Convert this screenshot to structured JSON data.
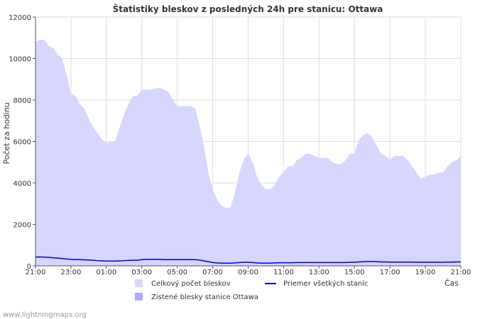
{
  "chart_data": {
    "type": "area",
    "title": "Štatistiky bleskov z posledných 24h pre stanicu: Ottawa",
    "xlabel": "Čas",
    "ylabel": "Počet za hodinu",
    "ylim": [
      0,
      12000
    ],
    "yticks": [
      0,
      2000,
      4000,
      6000,
      8000,
      10000,
      12000
    ],
    "xticks": [
      "21:00",
      "23:00",
      "01:00",
      "03:00",
      "05:00",
      "07:00",
      "09:00",
      "11:00",
      "13:00",
      "15:00",
      "17:00",
      "19:00",
      "21:00"
    ],
    "x_hours": [
      0,
      0.25,
      0.5,
      0.75,
      1,
      1.25,
      1.5,
      1.75,
      2,
      2.25,
      2.5,
      2.75,
      3,
      3.25,
      3.5,
      3.75,
      4,
      4.25,
      4.5,
      4.75,
      5,
      5.25,
      5.5,
      5.75,
      6,
      6.25,
      6.5,
      6.75,
      7,
      7.25,
      7.5,
      7.75,
      8,
      8.25,
      8.5,
      8.75,
      9,
      9.25,
      9.5,
      9.75,
      10,
      10.25,
      10.5,
      10.75,
      11,
      11.25,
      11.5,
      11.75,
      12,
      12.25,
      12.5,
      12.75,
      13,
      13.25,
      13.5,
      13.75,
      14,
      14.25,
      14.5,
      14.75,
      15,
      15.25,
      15.5,
      15.75,
      16,
      16.25,
      16.5,
      16.75,
      17,
      17.25,
      17.5,
      17.75,
      18,
      18.25,
      18.5,
      18.75,
      19,
      19.25,
      19.5,
      19.75,
      20,
      20.25,
      20.5,
      20.75,
      21,
      21.25,
      21.5,
      21.75,
      22,
      22.25,
      22.5,
      22.75,
      23,
      23.25,
      23.5,
      23.75,
      24
    ],
    "series": [
      {
        "name": "Celkový počet bleskov",
        "style": "area",
        "color": "#d6d6ff",
        "values": [
          10800,
          10900,
          10900,
          10600,
          10500,
          10200,
          10000,
          9200,
          8300,
          8200,
          7800,
          7600,
          7100,
          6700,
          6400,
          6100,
          5900,
          6000,
          6000,
          6700,
          7300,
          7800,
          8200,
          8200,
          8500,
          8500,
          8500,
          8550,
          8600,
          8500,
          8400,
          8000,
          7700,
          7700,
          7700,
          7700,
          7600,
          6800,
          5800,
          4500,
          3700,
          3200,
          2900,
          2800,
          2800,
          3500,
          4500,
          5100,
          5400,
          5000,
          4300,
          3900,
          3700,
          3700,
          3900,
          4300,
          4500,
          4800,
          4800,
          5100,
          5200,
          5400,
          5400,
          5300,
          5200,
          5200,
          5200,
          5000,
          4900,
          4900,
          5100,
          5400,
          5400,
          6100,
          6300,
          6400,
          6200,
          5800,
          5400,
          5300,
          5100,
          5300,
          5300,
          5300,
          5100,
          4800,
          4500,
          4200,
          4300,
          4400,
          4400,
          4500,
          4500,
          4800,
          5000,
          5100,
          5300
        ]
      },
      {
        "name": "Zistené blesky stanice Ottawa",
        "style": "area",
        "color": "#aaaaff",
        "values": []
      },
      {
        "name": "Priemer všetkých staníc",
        "style": "line",
        "color": "#0000cc",
        "values": [
          420,
          430,
          420,
          410,
          390,
          370,
          350,
          330,
          310,
          300,
          300,
          290,
          280,
          270,
          250,
          240,
          230,
          230,
          230,
          240,
          250,
          260,
          270,
          270,
          300,
          310,
          310,
          310,
          310,
          300,
          300,
          300,
          300,
          300,
          300,
          300,
          300,
          280,
          240,
          200,
          160,
          140,
          130,
          130,
          130,
          140,
          160,
          170,
          170,
          160,
          140,
          130,
          130,
          130,
          140,
          150,
          150,
          150,
          150,
          160,
          160,
          160,
          160,
          160,
          160,
          160,
          160,
          160,
          160,
          160,
          160,
          170,
          170,
          190,
          200,
          210,
          210,
          200,
          190,
          190,
          180,
          180,
          180,
          180,
          180,
          180,
          170,
          170,
          170,
          170,
          170,
          170,
          170,
          180,
          180,
          190,
          190
        ]
      }
    ],
    "legend": {
      "placement": "bottom",
      "items": [
        {
          "label": "Celkový počet bleskov",
          "kind": "box",
          "color": "#d6d6ff"
        },
        {
          "label": "Priemer všetkých staníc",
          "kind": "line",
          "color": "#0000cc"
        },
        {
          "label": "Zistené blesky stanice Ottawa",
          "kind": "box",
          "color": "#aaaaff"
        }
      ]
    },
    "grid": true
  },
  "footer": {
    "source": "www.lightningmaps.org"
  }
}
